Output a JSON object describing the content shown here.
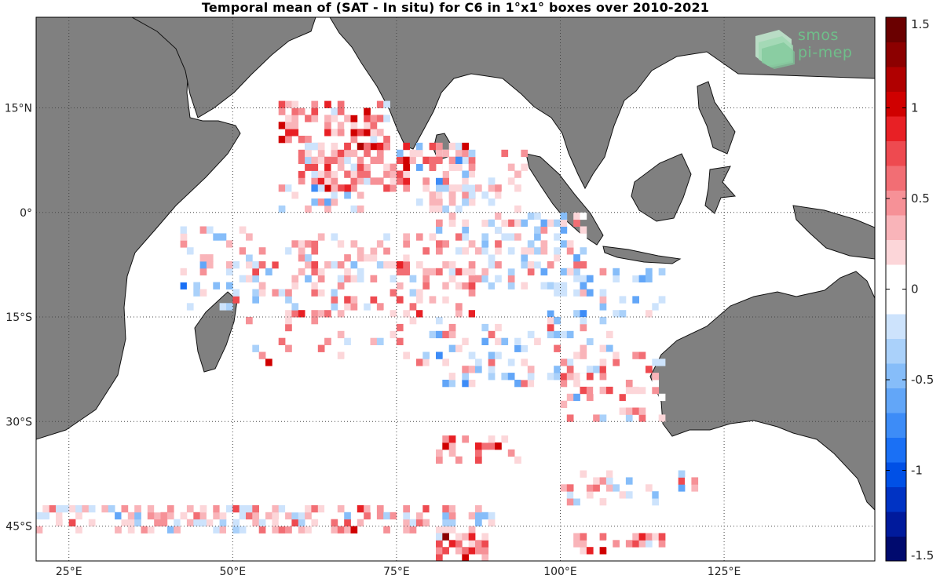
{
  "title": "Temporal mean of (SAT - In situ) for C6 in 1°x1° boxes over 2010-2021",
  "logo": {
    "line1": "smos",
    "line2": "pi-mep"
  },
  "colors": {
    "land": "#808080",
    "coast": "#111111",
    "grid": "#444444"
  },
  "map": {
    "lon_range": [
      20,
      148
    ],
    "lat_range": [
      -50,
      28
    ],
    "lon_ticks": [
      {
        "value": 25,
        "label": "25°E"
      },
      {
        "value": 50,
        "label": "50°E"
      },
      {
        "value": 75,
        "label": "75°E"
      },
      {
        "value": 100,
        "label": "100°E"
      },
      {
        "value": 125,
        "label": "125°E"
      }
    ],
    "lat_ticks": [
      {
        "value": 15,
        "label": "15°N"
      },
      {
        "value": 0,
        "label": "0°"
      },
      {
        "value": -15,
        "label": "15°S"
      },
      {
        "value": -30,
        "label": "30°S"
      },
      {
        "value": -45,
        "label": "45°S"
      }
    ]
  },
  "colorbar": {
    "range": [
      -1.5,
      1.5
    ],
    "ticks": [
      {
        "value": 1.5,
        "label": "1.5"
      },
      {
        "value": 1,
        "label": "1"
      },
      {
        "value": 0.5,
        "label": "0.5"
      },
      {
        "value": 0,
        "label": "0"
      },
      {
        "value": -0.5,
        "label": "-0.5"
      },
      {
        "value": -1,
        "label": "-1"
      },
      {
        "value": -1.5,
        "label": "-1.5"
      }
    ],
    "palette": [
      "#000a6e",
      "#001a9c",
      "#0033c4",
      "#0050e6",
      "#1a70f5",
      "#3d8cf7",
      "#62a6f8",
      "#86bdf9",
      "#aad1fa",
      "#cde3fc",
      "#ffffff",
      "#ffffff",
      "#fcd6d9",
      "#f9b4b9",
      "#f69197",
      "#f26e74",
      "#ee4a50",
      "#e82025",
      "#d00000",
      "#b00000",
      "#8c0000",
      "#6a0000"
    ]
  },
  "chart_data": {
    "type": "heatmap",
    "cell_size_deg": 1,
    "regions": [
      {
        "lon": [
          57,
          75
        ],
        "lat": [
          9,
          16
        ],
        "density": 0.55,
        "bias": 0.45
      },
      {
        "lon": [
          60,
          78
        ],
        "lat": [
          3,
          10
        ],
        "density": 0.7,
        "bias": 0.35
      },
      {
        "lon": [
          56,
          70
        ],
        "lat": [
          0,
          4
        ],
        "density": 0.5,
        "bias": 0.1
      },
      {
        "lon": [
          78,
          87
        ],
        "lat": [
          1,
          10
        ],
        "density": 0.6,
        "bias": 0.15
      },
      {
        "lon": [
          80,
          95
        ],
        "lat": [
          -3,
          9
        ],
        "density": 0.35,
        "bias": 0.05
      },
      {
        "lon": [
          42,
          58
        ],
        "lat": [
          -14,
          -2
        ],
        "density": 0.35,
        "bias": 0.0
      },
      {
        "lon": [
          58,
          88
        ],
        "lat": [
          -15,
          -3
        ],
        "density": 0.55,
        "bias": 0.15
      },
      {
        "lon": [
          88,
          104
        ],
        "lat": [
          -11,
          0
        ],
        "density": 0.5,
        "bias": -0.05
      },
      {
        "lon": [
          98,
          116
        ],
        "lat": [
          -15,
          -8
        ],
        "density": 0.45,
        "bias": -0.15
      },
      {
        "lon": [
          52,
          80
        ],
        "lat": [
          -22,
          -15
        ],
        "density": 0.2,
        "bias": 0.2
      },
      {
        "lon": [
          80,
          108
        ],
        "lat": [
          -25,
          -15
        ],
        "density": 0.35,
        "bias": -0.05
      },
      {
        "lon": [
          100,
          116
        ],
        "lat": [
          -30,
          -20
        ],
        "density": 0.4,
        "bias": 0.25
      },
      {
        "lon": [
          81,
          94
        ],
        "lat": [
          -36,
          -32
        ],
        "density": 0.5,
        "bias": 0.4
      },
      {
        "lon": [
          100,
          122
        ],
        "lat": [
          -42,
          -37
        ],
        "density": 0.35,
        "bias": 0.1
      },
      {
        "lon": [
          20,
          51
        ],
        "lat": [
          -46,
          -42
        ],
        "density": 0.7,
        "bias": 0.15
      },
      {
        "lon": [
          50,
          90
        ],
        "lat": [
          -46,
          -42
        ],
        "density": 0.6,
        "bias": 0.2
      },
      {
        "lon": [
          81,
          89
        ],
        "lat": [
          -50,
          -46
        ],
        "density": 0.45,
        "bias": 0.55
      },
      {
        "lon": [
          100,
          116
        ],
        "lat": [
          -49,
          -46
        ],
        "density": 0.4,
        "bias": 0.3
      }
    ]
  }
}
